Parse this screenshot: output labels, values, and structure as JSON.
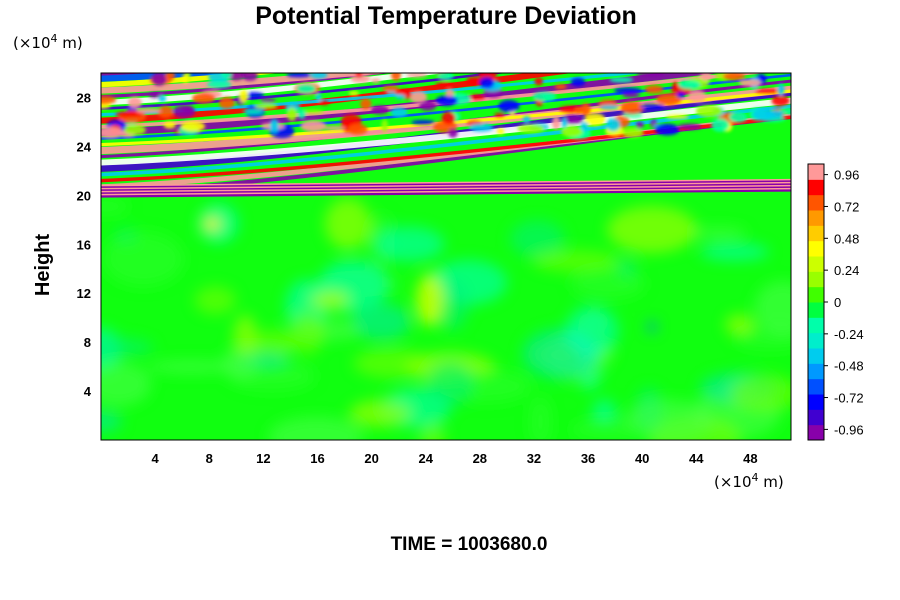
{
  "chart_data": {
    "type": "heatmap",
    "title": "Potential Temperature Deviation",
    "ylabel": "Height",
    "xlabel": "",
    "x_unit": {
      "prefix": "(×10",
      "exp": "4",
      "suffix": " m)"
    },
    "y_unit": {
      "prefix": "(×10",
      "exp": "4",
      "suffix": " m)"
    },
    "x_ticks": [
      4,
      8,
      12,
      16,
      20,
      24,
      28,
      32,
      36,
      40,
      44,
      48
    ],
    "y_ticks": [
      4,
      8,
      12,
      16,
      20,
      24,
      28
    ],
    "xlim": [
      0,
      51
    ],
    "ylim": [
      0,
      30
    ],
    "time_label": "TIME = 1003680.0",
    "colorbar": {
      "ticks": [
        "0.96",
        "0.72",
        "0.48",
        "0.24",
        "0",
        "-0.24",
        "-0.48",
        "-0.72",
        "-0.96"
      ],
      "range": [
        -1.04,
        1.04
      ],
      "colors": [
        "#8800aa",
        "#4000d0",
        "#0000ff",
        "#0050ff",
        "#0099ff",
        "#00ccee",
        "#00eecc",
        "#00ffaa",
        "#00ff40",
        "#40ff00",
        "#99ff00",
        "#ccff00",
        "#ffff00",
        "#ffcc00",
        "#ff9900",
        "#ff5500",
        "#ff0000",
        "#ff9999"
      ]
    }
  }
}
